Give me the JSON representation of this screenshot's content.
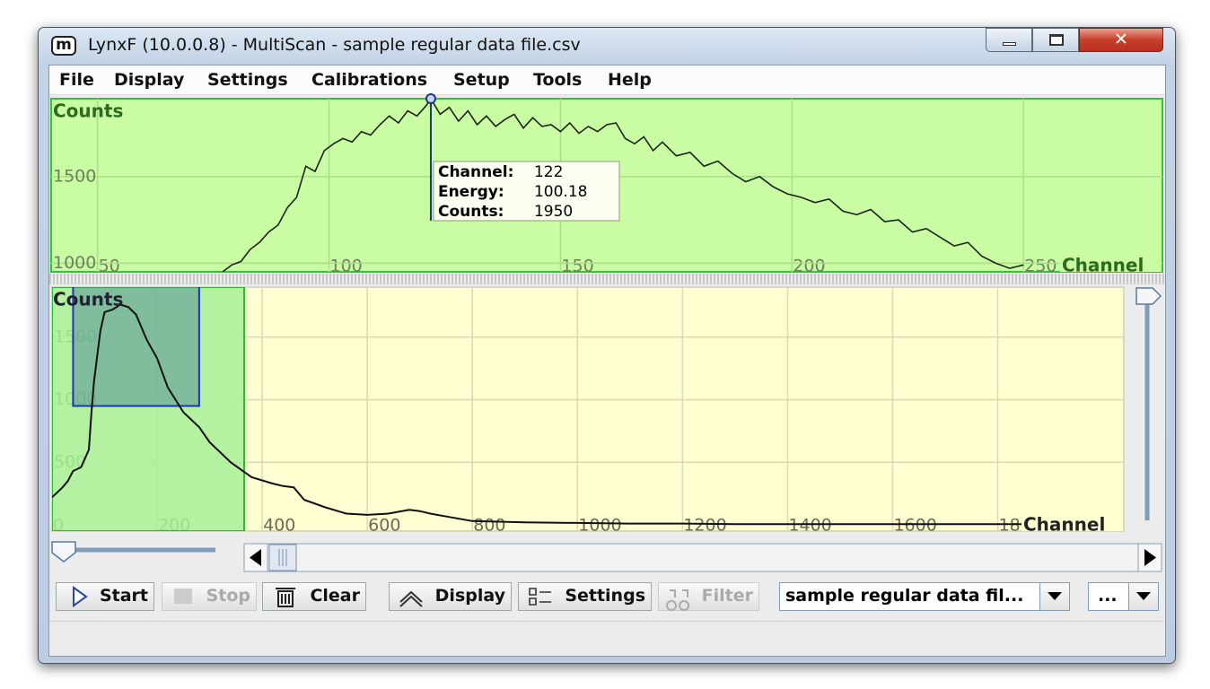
{
  "window": {
    "icon": "m",
    "title": "LynxF (10.0.0.8) - MultiScan - sample regular data file.csv"
  },
  "menu": [
    "File",
    "Display",
    "Settings",
    "Calibrations",
    "Setup",
    "Tools",
    "Help"
  ],
  "zoom_chart": {
    "type": "line",
    "y_label": "Counts",
    "x_label": "Channel",
    "xlim": [
      40,
      280
    ],
    "ylim": [
      950,
      1950
    ],
    "xticks": [
      50,
      100,
      150,
      200,
      250
    ],
    "yticks": [
      1000,
      1500
    ],
    "grid": true,
    "color": "#1c2418",
    "x": [
      77,
      79,
      81,
      83,
      85,
      87,
      89,
      91,
      93,
      95,
      97,
      99,
      101,
      103,
      105,
      107,
      109,
      111,
      113,
      115,
      117,
      119,
      121,
      122,
      124,
      126,
      128,
      130,
      132,
      134,
      136,
      138,
      140,
      142,
      144,
      146,
      148,
      150,
      152,
      154,
      156,
      158,
      160,
      162,
      164,
      166,
      168,
      170,
      172,
      175,
      178,
      181,
      184,
      187,
      190,
      193,
      196,
      199,
      202,
      205,
      208,
      211,
      214,
      217,
      220,
      223,
      226,
      229,
      232,
      235,
      238,
      241,
      244,
      247,
      250
    ],
    "values": [
      950,
      990,
      1010,
      1080,
      1120,
      1180,
      1220,
      1320,
      1380,
      1560,
      1530,
      1650,
      1690,
      1720,
      1700,
      1760,
      1740,
      1800,
      1850,
      1810,
      1880,
      1850,
      1910,
      1950,
      1860,
      1900,
      1820,
      1880,
      1800,
      1850,
      1790,
      1830,
      1860,
      1780,
      1840,
      1790,
      1800,
      1760,
      1810,
      1750,
      1790,
      1760,
      1800,
      1810,
      1720,
      1690,
      1730,
      1650,
      1700,
      1620,
      1640,
      1560,
      1590,
      1520,
      1470,
      1500,
      1440,
      1400,
      1380,
      1350,
      1370,
      1300,
      1280,
      1310,
      1240,
      1250,
      1180,
      1200,
      1150,
      1100,
      1120,
      1040,
      1000,
      970,
      990
    ]
  },
  "tooltip": {
    "channel_label": "Channel:",
    "channel": 122,
    "energy_label": "Energy:",
    "energy": 100.18,
    "counts_label": "Counts:",
    "counts": 1950
  },
  "full_chart": {
    "type": "line",
    "y_label": "Counts",
    "x_label": "Channel",
    "xlim": [
      0,
      2040
    ],
    "ylim": [
      -50,
      1900
    ],
    "xticks": [
      0,
      200,
      400,
      600,
      800,
      1000,
      1200,
      1400,
      1600,
      1800
    ],
    "yticks": [
      500,
      1000,
      1500
    ],
    "grid": true,
    "color": "#101010",
    "x": [
      0,
      10,
      20,
      30,
      40,
      55,
      70,
      75,
      80,
      85,
      92,
      100,
      115,
      130,
      145,
      160,
      180,
      200,
      220,
      250,
      280,
      300,
      340,
      380,
      420,
      440,
      460,
      480,
      520,
      560,
      600,
      640,
      680,
      700,
      720,
      760,
      800,
      900,
      1000,
      1100,
      1200,
      1300,
      1400,
      1500,
      1600,
      1700,
      1800,
      1900,
      2000
    ],
    "values": [
      220,
      260,
      300,
      350,
      430,
      460,
      600,
      900,
      1150,
      1320,
      1550,
      1700,
      1720,
      1760,
      1740,
      1680,
      1480,
      1330,
      1100,
      900,
      780,
      660,
      500,
      380,
      330,
      310,
      300,
      200,
      140,
      90,
      80,
      90,
      120,
      110,
      90,
      60,
      30,
      20,
      15,
      10,
      10,
      5,
      5,
      5,
      5,
      5,
      5,
      5,
      5
    ]
  },
  "toolbar": {
    "start": "Start",
    "stop": "Stop",
    "clear": "Clear",
    "display": "Display",
    "settings": "Settings",
    "filter": "Filter",
    "file_combo": "sample regular data fil...",
    "more": "..."
  }
}
